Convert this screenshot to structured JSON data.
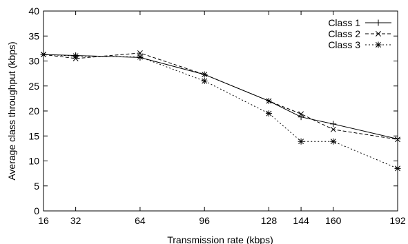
{
  "chart_data": {
    "type": "line",
    "title": "",
    "xlabel": "Transmission rate (kbps)",
    "ylabel": "Average class throughput (kbps)",
    "xlim": [
      16,
      192
    ],
    "ylim": [
      0,
      40
    ],
    "xticks": [
      16,
      32,
      64,
      96,
      128,
      144,
      160,
      192
    ],
    "yticks": [
      0,
      5,
      10,
      15,
      20,
      25,
      30,
      35,
      40
    ],
    "grid": false,
    "legend_position": "top-right",
    "x": [
      16,
      32,
      64,
      96,
      128,
      144,
      160,
      192
    ],
    "series": [
      {
        "name": "Class 1",
        "marker": "plus",
        "dash": "solid",
        "values": [
          31.3,
          31.1,
          30.7,
          27.3,
          22.0,
          18.8,
          17.4,
          14.4
        ]
      },
      {
        "name": "Class 2",
        "marker": "cross",
        "dash": "dashed",
        "values": [
          31.3,
          30.5,
          31.6,
          27.3,
          22.0,
          19.4,
          16.3,
          14.3
        ]
      },
      {
        "name": "Class 3",
        "marker": "star",
        "dash": "dotted",
        "values": [
          31.3,
          31.0,
          30.8,
          26.0,
          19.5,
          13.9,
          13.9,
          8.5
        ]
      }
    ]
  }
}
